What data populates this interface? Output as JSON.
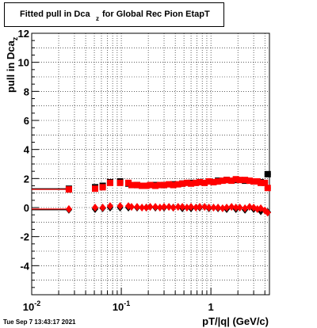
{
  "title": {
    "main": "Fitted pull in Dca",
    "subscript": "z",
    "rest": " for Global Rec Pion EtapT"
  },
  "timestamp": "Tue Sep  7 13:43:17 2021",
  "chart_data": {
    "type": "scatter",
    "title": "Fitted pull in Dca_z for Global Rec Pion EtapT",
    "xlabel": "pT/|q| (GeV/c)",
    "ylabel": "pull in Dca_z",
    "xscale": "log",
    "xlim": [
      0.01,
      4.5
    ],
    "ylim": [
      -6,
      12
    ],
    "grid": true,
    "x_tick_labels": [
      "10^-2",
      "10^-1",
      "1"
    ],
    "y_tick_labels": [
      "12",
      "10",
      "8",
      "6",
      "4",
      "2",
      "0",
      "-2",
      "-4"
    ],
    "colors": {
      "series_red": "#ff0000",
      "series_black": "#000000"
    },
    "series": [
      {
        "color": "#000000",
        "marker": "square",
        "x": [
          0.026,
          0.051,
          0.062,
          0.075,
          0.097,
          0.12,
          0.15,
          0.19,
          0.24,
          0.3,
          0.38,
          0.48,
          0.6,
          0.75,
          0.95,
          1.2,
          1.5,
          1.9,
          2.4,
          3.0,
          3.6,
          4.3
        ],
        "y": [
          1.3,
          1.4,
          1.5,
          1.75,
          1.8,
          1.65,
          1.55,
          1.5,
          1.55,
          1.55,
          1.6,
          1.65,
          1.7,
          1.75,
          1.8,
          1.85,
          1.9,
          1.9,
          1.85,
          1.8,
          1.75,
          2.3
        ]
      },
      {
        "color": "#000000",
        "marker": "diamond",
        "x": [
          0.026,
          0.051,
          0.062,
          0.075,
          0.097,
          0.12,
          0.15,
          0.19,
          0.24,
          0.3,
          0.38,
          0.48,
          0.6,
          0.75,
          0.95,
          1.2,
          1.5,
          1.9,
          2.4,
          3.0,
          3.6,
          4.3
        ],
        "y": [
          -0.15,
          -0.1,
          -0.05,
          0.0,
          0.0,
          0.0,
          0.0,
          0.0,
          0.0,
          0.0,
          0.0,
          -0.05,
          -0.05,
          0.0,
          -0.05,
          -0.05,
          -0.1,
          -0.1,
          -0.15,
          -0.1,
          -0.25,
          -0.3
        ]
      },
      {
        "color": "#ff0000",
        "marker": "square",
        "x": [
          0.026,
          0.051,
          0.062,
          0.075,
          0.097,
          0.12,
          0.13,
          0.15,
          0.17,
          0.19,
          0.21,
          0.24,
          0.27,
          0.3,
          0.34,
          0.38,
          0.43,
          0.48,
          0.54,
          0.6,
          0.68,
          0.75,
          0.85,
          0.95,
          1.07,
          1.2,
          1.35,
          1.5,
          1.7,
          1.9,
          2.1,
          2.4,
          2.7,
          3.0,
          3.3,
          3.6,
          4.0,
          4.3
        ],
        "y": [
          1.25,
          1.3,
          1.4,
          1.7,
          1.7,
          1.7,
          1.55,
          1.55,
          1.5,
          1.5,
          1.55,
          1.5,
          1.55,
          1.55,
          1.6,
          1.55,
          1.6,
          1.65,
          1.7,
          1.65,
          1.7,
          1.75,
          1.7,
          1.8,
          1.75,
          1.8,
          1.85,
          1.9,
          1.85,
          1.95,
          1.9,
          1.9,
          1.85,
          1.8,
          1.8,
          1.7,
          1.7,
          1.35
        ]
      },
      {
        "color": "#ff0000",
        "marker": "diamond",
        "x": [
          0.026,
          0.051,
          0.062,
          0.075,
          0.097,
          0.12,
          0.13,
          0.15,
          0.17,
          0.19,
          0.21,
          0.24,
          0.27,
          0.3,
          0.34,
          0.38,
          0.43,
          0.48,
          0.54,
          0.6,
          0.68,
          0.75,
          0.85,
          0.95,
          1.07,
          1.2,
          1.35,
          1.5,
          1.7,
          1.9,
          2.1,
          2.4,
          2.7,
          3.0,
          3.3,
          3.6,
          4.0,
          4.3
        ],
        "y": [
          -0.1,
          0.0,
          0.0,
          0.1,
          0.1,
          0.1,
          0.05,
          0.05,
          0.0,
          0.0,
          0.05,
          0.05,
          0.0,
          0.05,
          0.05,
          0.0,
          0.05,
          0.05,
          0.0,
          0.05,
          0.0,
          0.05,
          0.05,
          0.0,
          0.0,
          0.0,
          -0.05,
          0.0,
          0.05,
          0.0,
          0.0,
          -0.05,
          0.05,
          0.0,
          -0.1,
          -0.05,
          -0.2,
          -0.35
        ]
      }
    ]
  }
}
